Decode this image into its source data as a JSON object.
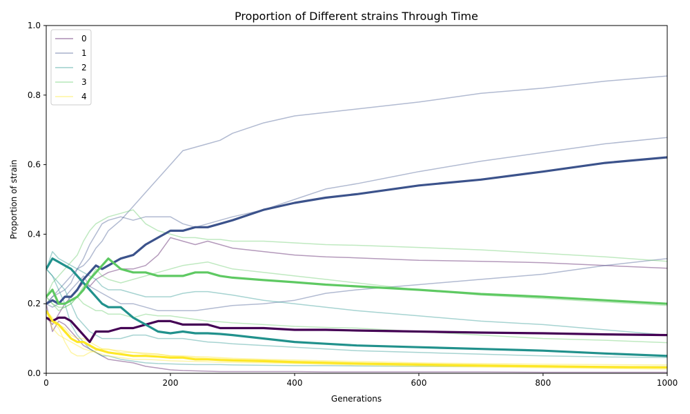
{
  "chart_data": {
    "type": "line",
    "title": "Proportion of Different strains Through Time",
    "xlabel": "Generations",
    "ylabel": "Proportion of strain",
    "xlim": [
      0,
      1000
    ],
    "ylim": [
      0,
      1.0
    ],
    "x_ticks": [
      "0",
      "200",
      "400",
      "600",
      "800",
      "1000"
    ],
    "y_ticks": [
      "0.0",
      "0.2",
      "0.4",
      "0.6",
      "0.8",
      "1.0"
    ],
    "grid": false,
    "legend": {
      "placement": "top-left",
      "entries": [
        "0",
        "1",
        "2",
        "3",
        "4"
      ]
    },
    "colors": {
      "0": "#440154",
      "1": "#3b528b",
      "2": "#21918c",
      "3": "#5ec962",
      "4": "#fde725"
    },
    "x": [
      0,
      10,
      20,
      30,
      40,
      50,
      60,
      70,
      80,
      90,
      100,
      120,
      140,
      160,
      180,
      200,
      220,
      240,
      260,
      280,
      300,
      350,
      400,
      450,
      500,
      600,
      700,
      800,
      900,
      1000
    ],
    "series": [
      {
        "name": "0",
        "kind": "mean",
        "values": [
          0.16,
          0.15,
          0.16,
          0.16,
          0.15,
          0.13,
          0.11,
          0.09,
          0.12,
          0.12,
          0.12,
          0.13,
          0.13,
          0.14,
          0.15,
          0.15,
          0.14,
          0.14,
          0.14,
          0.13,
          0.13,
          0.13,
          0.125,
          0.125,
          0.123,
          0.12,
          0.117,
          0.115,
          0.112,
          0.11
        ]
      },
      {
        "name": "1",
        "kind": "mean",
        "values": [
          0.2,
          0.21,
          0.2,
          0.22,
          0.22,
          0.24,
          0.27,
          0.29,
          0.31,
          0.3,
          0.31,
          0.33,
          0.34,
          0.37,
          0.39,
          0.41,
          0.41,
          0.42,
          0.42,
          0.43,
          0.44,
          0.47,
          0.49,
          0.505,
          0.515,
          0.54,
          0.557,
          0.58,
          0.605,
          0.621
        ]
      },
      {
        "name": "2",
        "kind": "mean",
        "values": [
          0.3,
          0.33,
          0.32,
          0.31,
          0.3,
          0.28,
          0.26,
          0.24,
          0.22,
          0.2,
          0.19,
          0.19,
          0.16,
          0.14,
          0.12,
          0.115,
          0.12,
          0.115,
          0.115,
          0.113,
          0.11,
          0.1,
          0.09,
          0.085,
          0.08,
          0.075,
          0.07,
          0.065,
          0.057,
          0.05
        ]
      },
      {
        "name": "3",
        "kind": "mean",
        "values": [
          0.22,
          0.24,
          0.2,
          0.2,
          0.21,
          0.22,
          0.24,
          0.27,
          0.29,
          0.31,
          0.33,
          0.3,
          0.29,
          0.29,
          0.28,
          0.28,
          0.28,
          0.29,
          0.29,
          0.28,
          0.275,
          0.268,
          0.262,
          0.255,
          0.25,
          0.24,
          0.228,
          0.22,
          0.21,
          0.2
        ]
      },
      {
        "name": "4",
        "kind": "mean",
        "values": [
          0.18,
          0.15,
          0.14,
          0.12,
          0.1,
          0.09,
          0.09,
          0.08,
          0.07,
          0.065,
          0.06,
          0.055,
          0.05,
          0.05,
          0.048,
          0.045,
          0.045,
          0.04,
          0.04,
          0.038,
          0.037,
          0.035,
          0.032,
          0.03,
          0.028,
          0.025,
          0.022,
          0.02,
          0.018,
          0.017
        ]
      },
      {
        "name": "0",
        "kind": "run",
        "values": [
          0.16,
          0.14,
          0.17,
          0.2,
          0.22,
          0.24,
          0.26,
          0.25,
          0.27,
          0.28,
          0.29,
          0.3,
          0.3,
          0.31,
          0.34,
          0.39,
          0.38,
          0.37,
          0.38,
          0.37,
          0.36,
          0.35,
          0.34,
          0.335,
          0.332,
          0.325,
          0.322,
          0.318,
          0.31,
          0.302
        ]
      },
      {
        "name": "0",
        "kind": "run",
        "values": [
          0.2,
          0.12,
          0.15,
          0.14,
          0.12,
          0.1,
          0.08,
          0.07,
          0.06,
          0.05,
          0.04,
          0.035,
          0.03,
          0.02,
          0.015,
          0.01,
          0.008,
          0.007,
          0.006,
          0.005,
          0.005,
          0.005,
          0.005,
          0.004,
          0.004,
          0.004,
          0.004,
          0.003,
          0.003,
          0.003
        ]
      },
      {
        "name": "1",
        "kind": "run",
        "values": [
          0.2,
          0.22,
          0.24,
          0.26,
          0.28,
          0.3,
          0.31,
          0.33,
          0.36,
          0.38,
          0.41,
          0.44,
          0.48,
          0.52,
          0.56,
          0.6,
          0.64,
          0.65,
          0.66,
          0.67,
          0.69,
          0.72,
          0.74,
          0.75,
          0.76,
          0.78,
          0.805,
          0.82,
          0.84,
          0.855
        ]
      },
      {
        "name": "1",
        "kind": "run",
        "values": [
          0.2,
          0.22,
          0.23,
          0.24,
          0.26,
          0.3,
          0.33,
          0.37,
          0.4,
          0.43,
          0.44,
          0.45,
          0.44,
          0.45,
          0.45,
          0.45,
          0.43,
          0.42,
          0.43,
          0.44,
          0.45,
          0.47,
          0.5,
          0.53,
          0.545,
          0.58,
          0.61,
          0.635,
          0.66,
          0.678
        ]
      },
      {
        "name": "1",
        "kind": "run",
        "values": [
          0.2,
          0.19,
          0.2,
          0.22,
          0.24,
          0.26,
          0.28,
          0.25,
          0.24,
          0.23,
          0.22,
          0.2,
          0.2,
          0.19,
          0.18,
          0.18,
          0.18,
          0.18,
          0.185,
          0.19,
          0.195,
          0.2,
          0.21,
          0.23,
          0.24,
          0.255,
          0.27,
          0.285,
          0.31,
          0.33
        ]
      },
      {
        "name": "2",
        "kind": "run",
        "values": [
          0.3,
          0.35,
          0.33,
          0.32,
          0.31,
          0.3,
          0.29,
          0.28,
          0.27,
          0.25,
          0.24,
          0.24,
          0.23,
          0.22,
          0.22,
          0.22,
          0.23,
          0.235,
          0.235,
          0.23,
          0.225,
          0.21,
          0.2,
          0.19,
          0.18,
          0.165,
          0.15,
          0.14,
          0.125,
          0.11
        ]
      },
      {
        "name": "2",
        "kind": "run",
        "values": [
          0.3,
          0.28,
          0.26,
          0.24,
          0.2,
          0.16,
          0.14,
          0.12,
          0.11,
          0.1,
          0.1,
          0.1,
          0.11,
          0.11,
          0.1,
          0.1,
          0.1,
          0.095,
          0.09,
          0.088,
          0.085,
          0.08,
          0.075,
          0.07,
          0.065,
          0.06,
          0.055,
          0.05,
          0.047,
          0.045
        ]
      },
      {
        "name": "2",
        "kind": "run",
        "values": [
          0.3,
          0.28,
          0.24,
          0.2,
          0.14,
          0.11,
          0.09,
          0.07,
          0.06,
          0.05,
          0.05,
          0.04,
          0.035,
          0.03,
          0.028,
          0.027,
          0.026,
          0.025,
          0.025,
          0.025,
          0.024,
          0.023,
          0.022,
          0.022,
          0.021,
          0.02,
          0.02,
          0.02,
          0.019,
          0.019
        ]
      },
      {
        "name": "3",
        "kind": "run",
        "values": [
          0.22,
          0.26,
          0.28,
          0.3,
          0.32,
          0.34,
          0.38,
          0.41,
          0.43,
          0.44,
          0.45,
          0.46,
          0.47,
          0.43,
          0.41,
          0.4,
          0.39,
          0.39,
          0.385,
          0.385,
          0.38,
          0.38,
          0.375,
          0.37,
          0.368,
          0.362,
          0.355,
          0.345,
          0.335,
          0.322
        ]
      },
      {
        "name": "3",
        "kind": "run",
        "values": [
          0.22,
          0.2,
          0.19,
          0.19,
          0.2,
          0.22,
          0.25,
          0.27,
          0.3,
          0.28,
          0.27,
          0.26,
          0.27,
          0.28,
          0.29,
          0.3,
          0.31,
          0.315,
          0.32,
          0.31,
          0.3,
          0.29,
          0.28,
          0.27,
          0.26,
          0.24,
          0.225,
          0.215,
          0.205,
          0.195
        ]
      },
      {
        "name": "3",
        "kind": "run",
        "values": [
          0.22,
          0.2,
          0.18,
          0.19,
          0.2,
          0.22,
          0.2,
          0.19,
          0.18,
          0.18,
          0.17,
          0.17,
          0.16,
          0.17,
          0.165,
          0.165,
          0.16,
          0.155,
          0.15,
          0.148,
          0.145,
          0.14,
          0.135,
          0.132,
          0.13,
          0.12,
          0.11,
          0.1,
          0.095,
          0.088
        ]
      },
      {
        "name": "4",
        "kind": "run",
        "values": [
          0.18,
          0.16,
          0.14,
          0.13,
          0.11,
          0.1,
          0.1,
          0.09,
          0.08,
          0.07,
          0.07,
          0.06,
          0.06,
          0.055,
          0.055,
          0.05,
          0.05,
          0.048,
          0.047,
          0.045,
          0.043,
          0.04,
          0.038,
          0.036,
          0.034,
          0.03,
          0.028,
          0.026,
          0.025,
          0.024
        ]
      },
      {
        "name": "4",
        "kind": "run",
        "values": [
          0.18,
          0.13,
          0.11,
          0.1,
          0.09,
          0.08,
          0.07,
          0.065,
          0.06,
          0.055,
          0.05,
          0.045,
          0.04,
          0.04,
          0.038,
          0.036,
          0.035,
          0.034,
          0.033,
          0.032,
          0.031,
          0.03,
          0.028,
          0.026,
          0.024,
          0.02,
          0.018,
          0.016,
          0.014,
          0.012
        ]
      },
      {
        "name": "4",
        "kind": "run",
        "values": [
          0.18,
          0.15,
          0.13,
          0.09,
          0.06,
          0.05,
          0.05,
          0.06,
          0.065,
          0.07,
          0.068,
          0.065,
          0.06,
          0.058,
          0.055,
          0.05,
          0.048,
          0.045,
          0.043,
          0.042,
          0.04,
          0.038,
          0.035,
          0.033,
          0.03,
          0.027,
          0.025,
          0.022,
          0.02,
          0.018
        ]
      }
    ]
  }
}
